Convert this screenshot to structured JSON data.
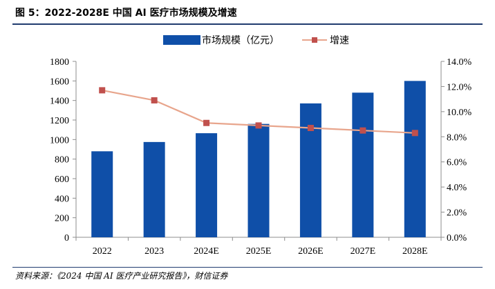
{
  "figure": {
    "title": "图 5：2022-2028E 中国 AI 医疗市场规模及增速",
    "source": "资料来源：《2024 中国 AI 医疗产业研究报告》，财信证券"
  },
  "colors": {
    "bar": "#0f4fa8",
    "line": "#e8a58c",
    "marker": "#c0504d",
    "rule": "#1f3a6e",
    "axis": "#8c8c8c"
  },
  "chart_data": {
    "type": "bar",
    "categories": [
      "2022",
      "2023",
      "2024E",
      "2025E",
      "2026E",
      "2027E",
      "2028E"
    ],
    "series": [
      {
        "name": "市场规模（亿元）",
        "type": "bar",
        "axis": "left",
        "values": [
          880,
          975,
          1065,
          1160,
          1370,
          1480,
          1600
        ]
      },
      {
        "name": "增速",
        "type": "line",
        "axis": "right",
        "values": [
          11.7,
          10.9,
          9.1,
          8.9,
          8.7,
          8.5,
          8.3
        ]
      }
    ],
    "y_left": {
      "ylim": [
        0,
        1800
      ],
      "ticks": [
        "0",
        "200",
        "400",
        "600",
        "800",
        "1000",
        "1200",
        "1400",
        "1600",
        "1800"
      ]
    },
    "y_right": {
      "ylim": [
        0,
        14
      ],
      "ticks": [
        "0.0%",
        "2.0%",
        "4.0%",
        "6.0%",
        "8.0%",
        "10.0%",
        "12.0%",
        "14.0%"
      ]
    },
    "legend": {
      "placement": "top-center"
    },
    "grid": false
  }
}
